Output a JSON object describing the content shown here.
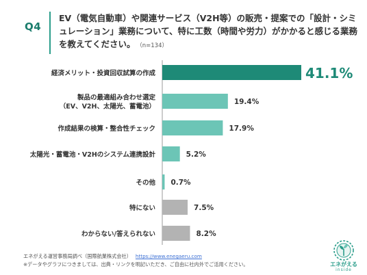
{
  "header": {
    "q_number": "Q4",
    "question": "EV（電気自動車）や関連サービス（V2H等）の販売・提案での「設計・シミュレーション」業務について、特に工数（時間や労力）がかかると感じる業務を教えてください。",
    "sample_size": "（n=134）"
  },
  "chart_data": {
    "type": "bar",
    "orientation": "horizontal",
    "categories": [
      [
        "経済メリット・投資回収試算の作成"
      ],
      [
        "製品の最適組み合わせ選定",
        "（EV、V2H、太陽光、蓄電池）"
      ],
      [
        "作成結果の検算・整合性チェック"
      ],
      [
        "太陽光・蓄電池・V2Hのシステム連携設計"
      ],
      [
        "その他"
      ],
      [
        "特にない"
      ],
      [
        "わからない/答えられない"
      ]
    ],
    "values": [
      41.1,
      19.4,
      17.9,
      5.2,
      0.7,
      7.5,
      8.2
    ],
    "value_labels": [
      "41.1%",
      "19.4%",
      "17.9%",
      "5.2%",
      "0.7%",
      "7.5%",
      "8.2%"
    ],
    "xlim": [
      0,
      41.1
    ],
    "grid": false,
    "colors": {
      "top": "#1e8a77",
      "options": "#6cc5b6",
      "none": "#b3b3b3",
      "highlight_label": "#1e8a77",
      "label": "#333333",
      "axis": "#999999"
    }
  },
  "footer": {
    "source": "エネがえる運営事務局調べ（国際航業株式会社）",
    "source_link": "https://www.enegaeru.com",
    "note": "※データやグラフにつきましては、出典・リンクを明記いただき、ご自由に社内外でご活用ください。"
  },
  "logo": {
    "icon": "sprout-circle-icon",
    "name": "エネがえる",
    "sub": "inside"
  }
}
